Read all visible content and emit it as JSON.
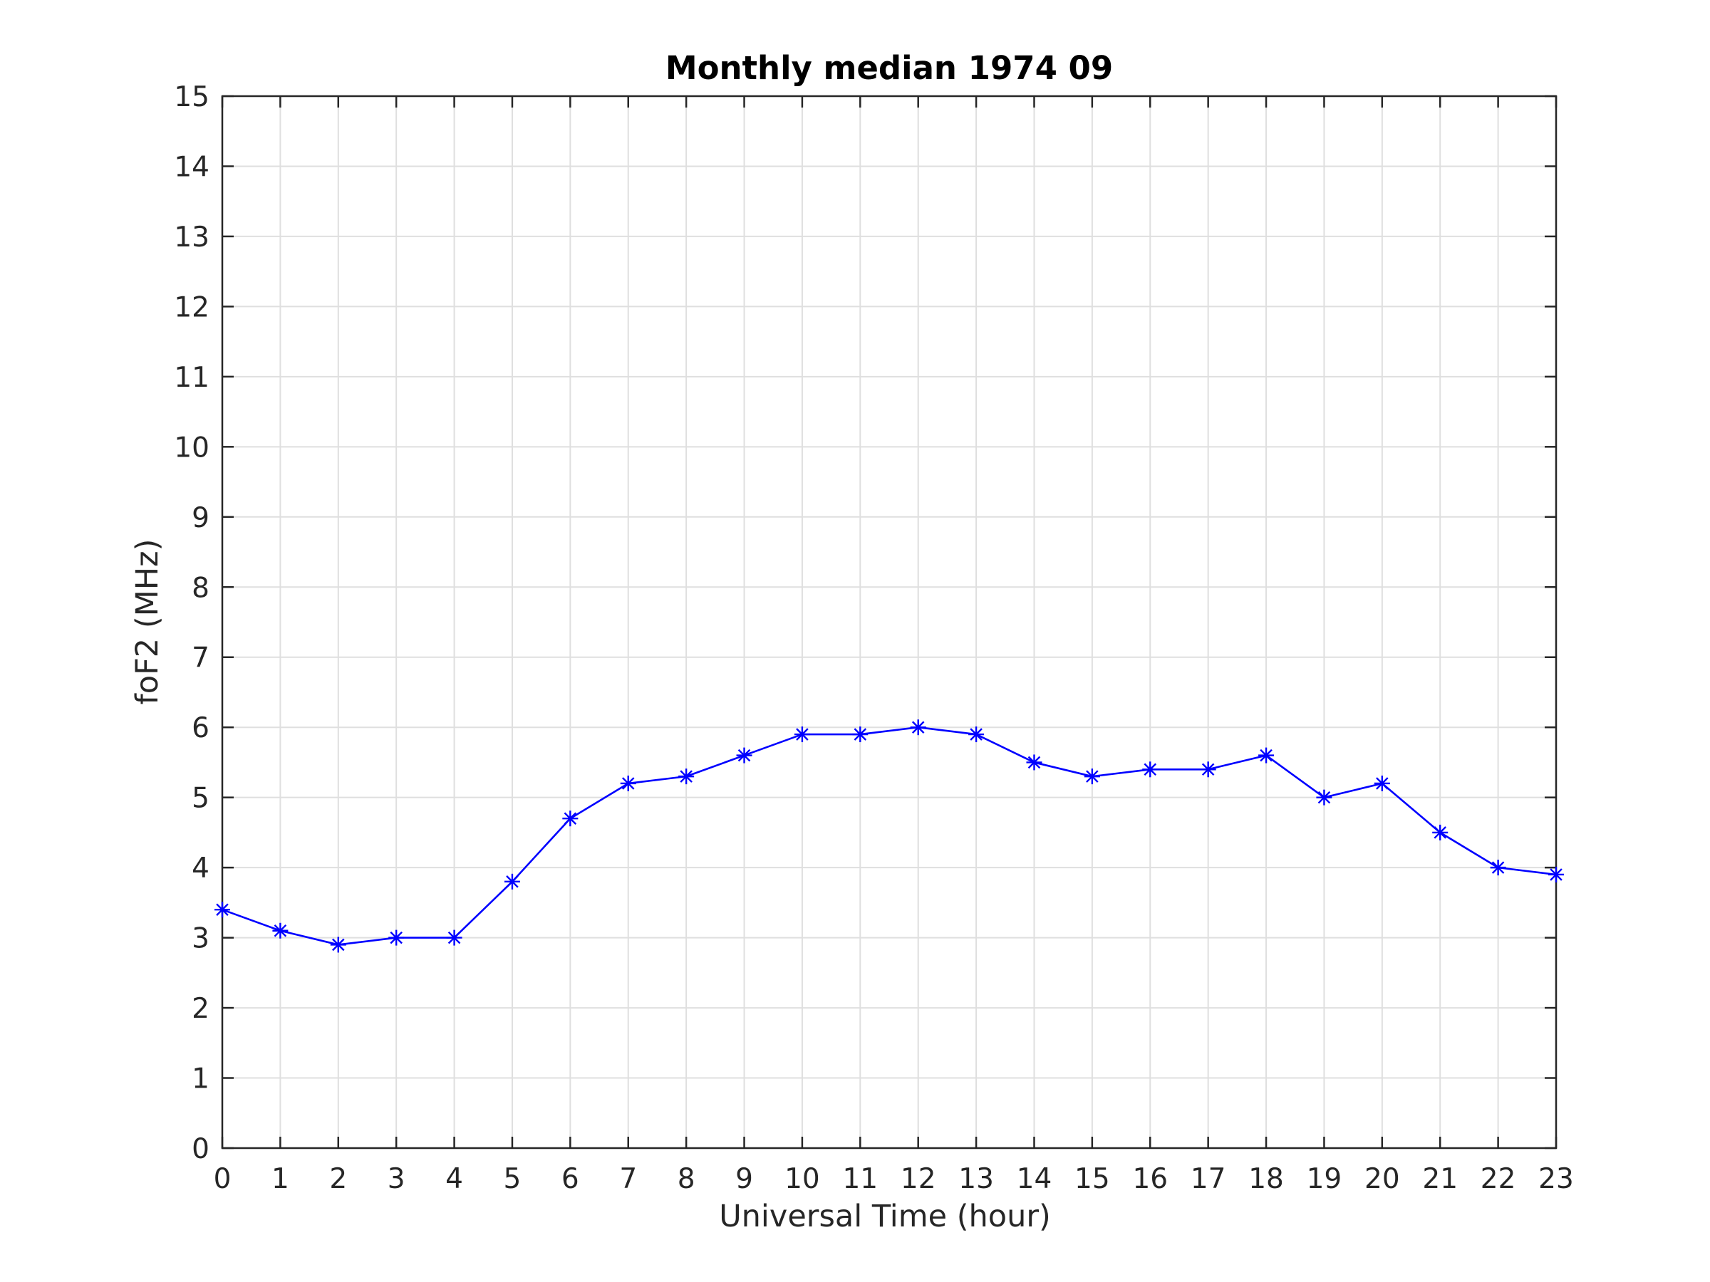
{
  "chart_data": {
    "type": "line",
    "title": "Monthly median 1974 09",
    "xlabel": "Universal Time (hour)",
    "ylabel": "foF2 (MHz)",
    "xlim": [
      0,
      23
    ],
    "ylim": [
      0,
      15
    ],
    "x_ticks": [
      0,
      1,
      2,
      3,
      4,
      5,
      6,
      7,
      8,
      9,
      10,
      11,
      12,
      13,
      14,
      15,
      16,
      17,
      18,
      19,
      20,
      21,
      22,
      23
    ],
    "y_ticks": [
      0,
      1,
      2,
      3,
      4,
      5,
      6,
      7,
      8,
      9,
      10,
      11,
      12,
      13,
      14,
      15
    ],
    "grid": true,
    "marker": "asterisk",
    "series": [
      {
        "x": [
          0,
          1,
          2,
          3,
          4,
          5,
          6,
          7,
          8,
          9,
          10,
          11,
          12,
          13,
          14,
          15,
          16,
          17,
          18,
          19,
          20,
          21,
          22,
          23
        ],
        "values": [
          3.4,
          3.1,
          2.9,
          3.0,
          3.0,
          3.8,
          4.7,
          5.2,
          5.3,
          5.6,
          5.9,
          5.9,
          6.0,
          5.9,
          5.5,
          5.3,
          5.4,
          5.4,
          5.6,
          5.0,
          5.2,
          4.5,
          4.0,
          3.9
        ],
        "color": "#0000ff"
      }
    ]
  },
  "colors": {
    "axis": "#262626",
    "grid": "#dfdfdf",
    "line": "#0000ff",
    "background": "#ffffff"
  }
}
